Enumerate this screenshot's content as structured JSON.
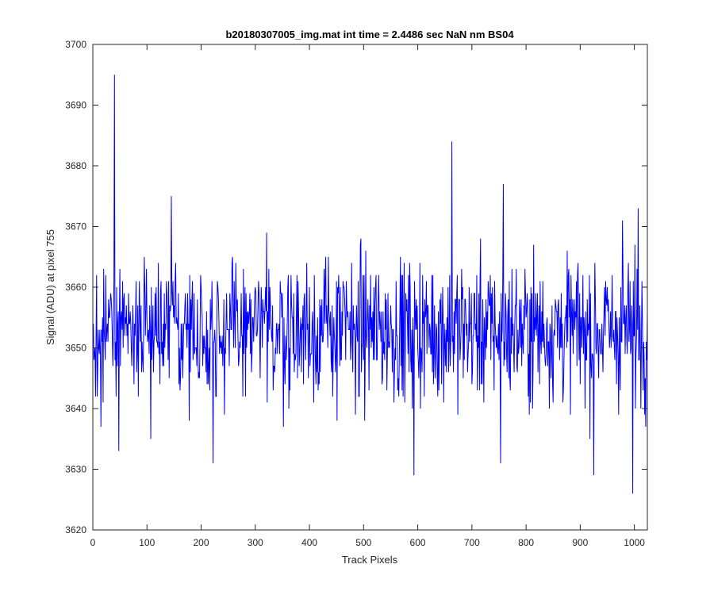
{
  "chart_data": {
    "type": "line",
    "title": "b20180307005_img.mat int time = 2.4486 sec  NaN nm BS04",
    "xlabel": "Track Pixels",
    "ylabel": "Signal (ADU) at pixel 755",
    "xlim": [
      0,
      1024
    ],
    "ylim": [
      3620,
      3700
    ],
    "xticks": [
      0,
      100,
      200,
      300,
      400,
      500,
      600,
      700,
      800,
      900,
      1000
    ],
    "yticks": [
      3620,
      3630,
      3640,
      3650,
      3660,
      3670,
      3680,
      3690,
      3700
    ],
    "grid": false,
    "series": [
      {
        "color": "#0000ff",
        "x_start": 1,
        "x_step": 1,
        "n_points": 1024,
        "y_min": 3626,
        "y_max": 3695,
        "y_mean_approx": 3653,
        "values_notable": [
          {
            "x": 15,
            "y": 3637
          },
          {
            "x": 40,
            "y": 3695
          },
          {
            "x": 48,
            "y": 3633
          },
          {
            "x": 145,
            "y": 3675
          },
          {
            "x": 222,
            "y": 3631
          },
          {
            "x": 593,
            "y": 3629
          },
          {
            "x": 663,
            "y": 3684
          },
          {
            "x": 753,
            "y": 3631
          },
          {
            "x": 758,
            "y": 3677
          },
          {
            "x": 925,
            "y": 3629
          },
          {
            "x": 978,
            "y": 3671
          },
          {
            "x": 997,
            "y": 3626
          },
          {
            "x": 1007,
            "y": 3673
          }
        ]
      }
    ]
  }
}
